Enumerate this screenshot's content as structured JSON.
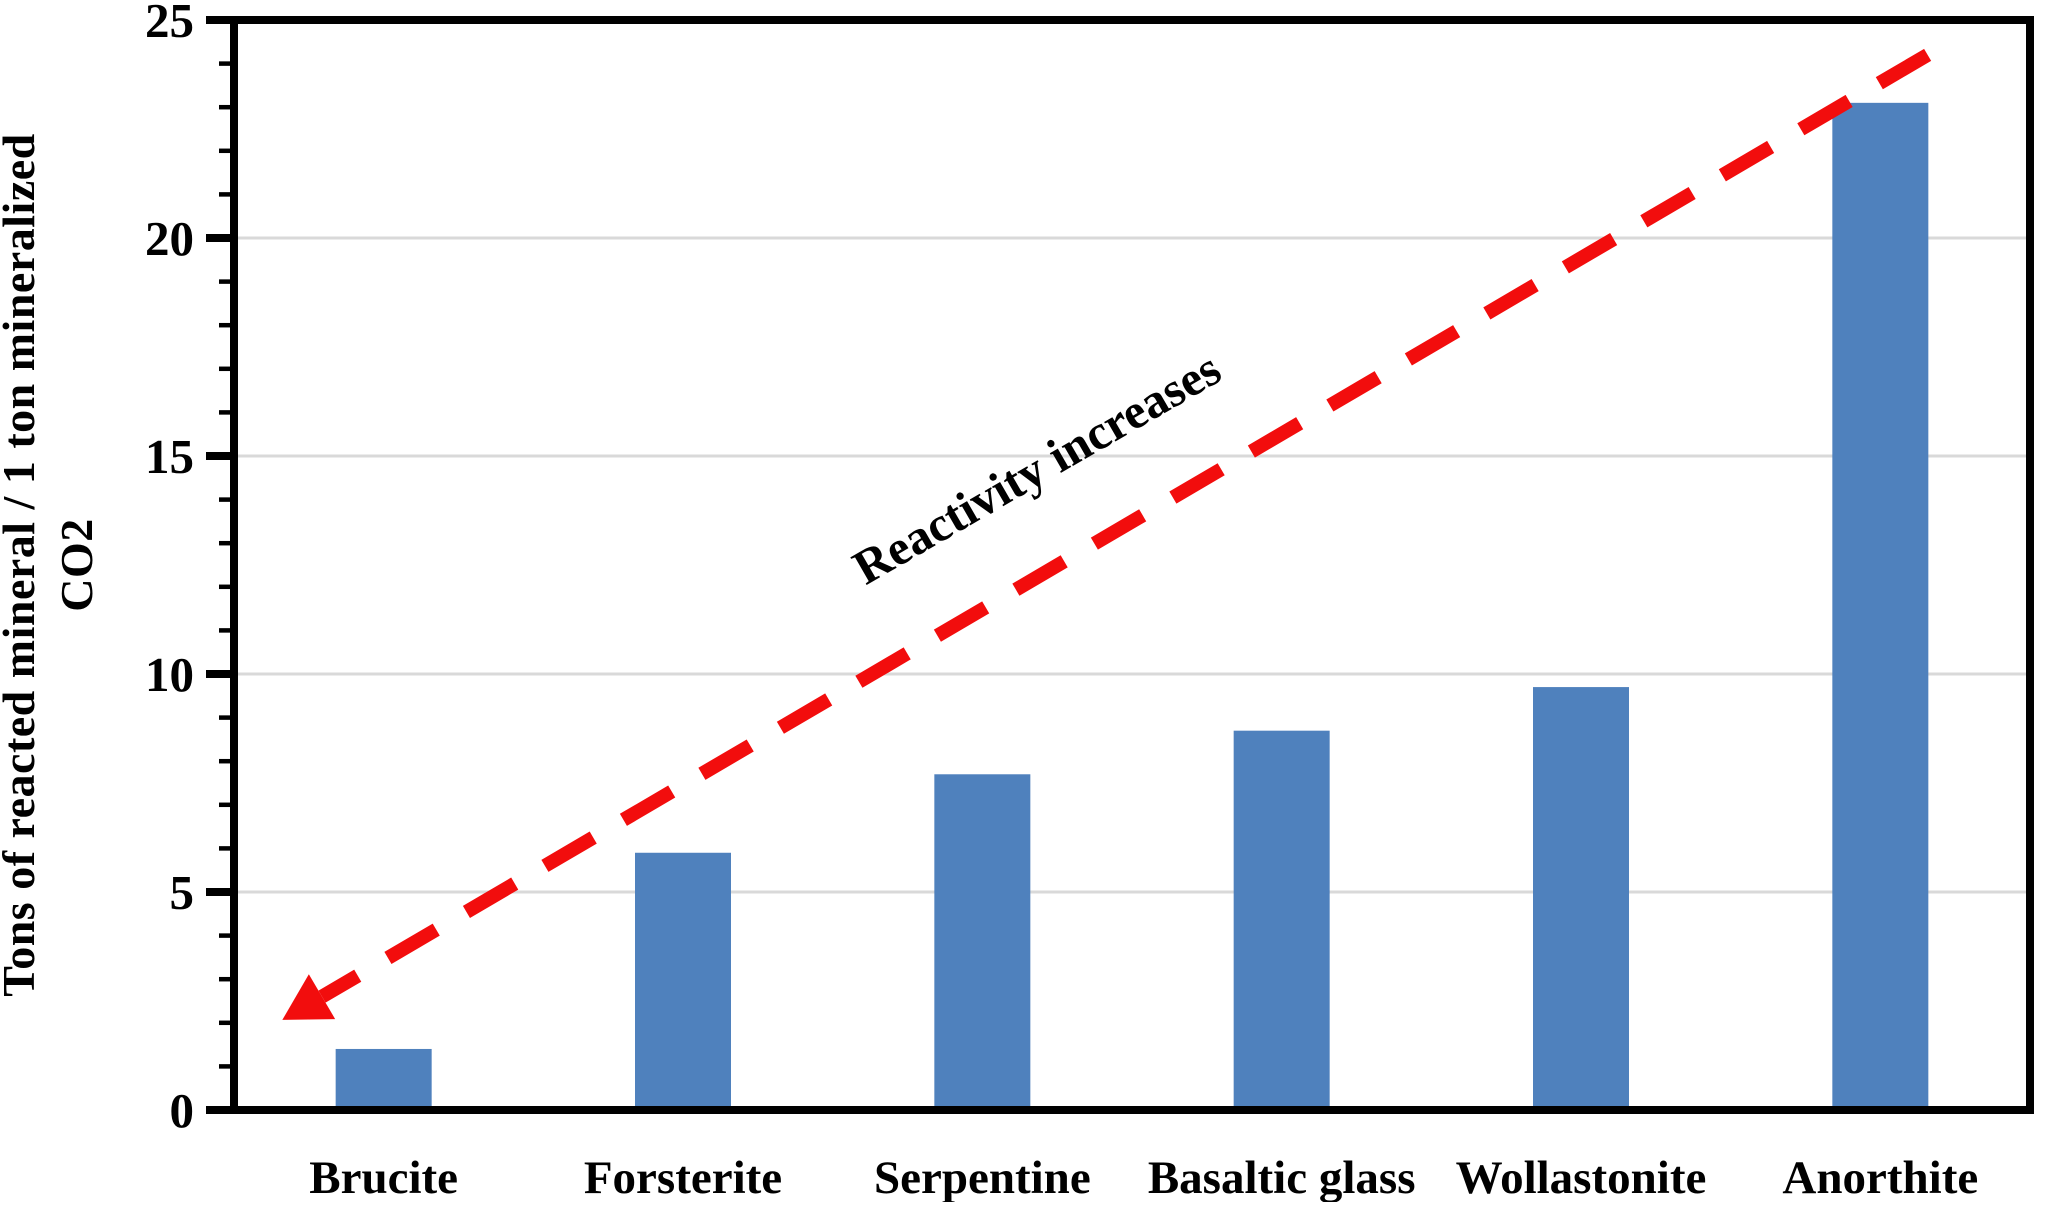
{
  "chart_data": {
    "type": "bar",
    "title": "",
    "categories": [
      "Brucite",
      "Forsterite",
      "Serpentine",
      "Basaltic glass",
      "Wollastonite",
      "Anorthite"
    ],
    "values": [
      1.4,
      5.9,
      7.7,
      8.7,
      9.7,
      23.1
    ],
    "xlabel": "",
    "ylabel_line1": "Tons of reacted mineral / 1 ton mineralized",
    "ylabel_line2": "CO2",
    "ylim": [
      0,
      25
    ],
    "yticks": [
      0,
      5,
      10,
      15,
      20,
      25
    ],
    "ytick_minor_step": 1,
    "grid": "horizontal-major-on",
    "legend": "none",
    "bar_color": "#4F81BD",
    "grid_color": "#D9D9D9",
    "axis_color": "#000000",
    "annotation": {
      "text": "Reactivity increases",
      "angle_deg": -30,
      "x_frac": 0.4515,
      "y_value": 14.4
    },
    "arrow": {
      "style": "dashed",
      "color": "#F20D0D",
      "x1_frac": 0.943,
      "y1_value": 24.2,
      "x2_frac": 0.049,
      "y2_value": 2.6,
      "head": "at-low-end"
    }
  }
}
